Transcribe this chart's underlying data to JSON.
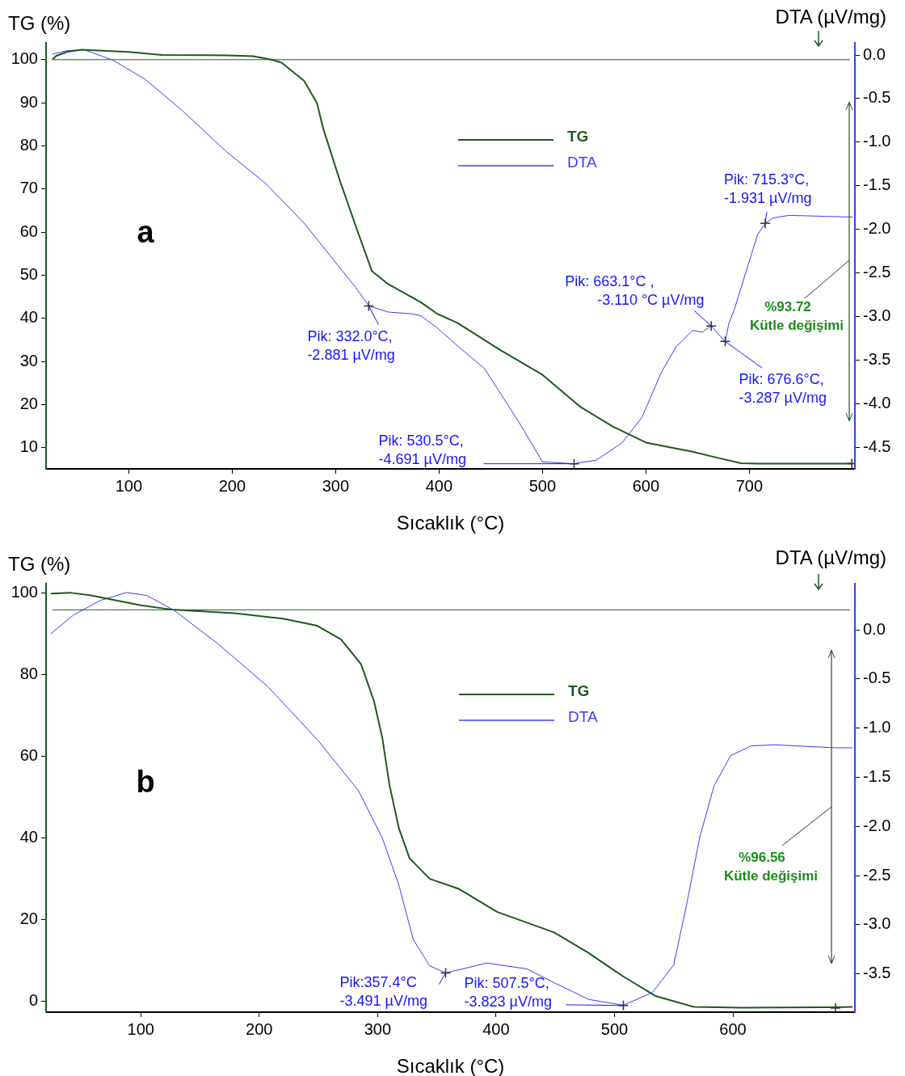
{
  "chart_data": [
    {
      "type": "line",
      "xlabel": "Sıcaklık (°C)",
      "ylabel": "TG (%)",
      "y2label": "DTA (µV/mg)",
      "xlim": [
        20,
        802
      ],
      "xticks": [
        100,
        200,
        300,
        400,
        500,
        600,
        700
      ],
      "ylim": [
        5.1,
        103.9
      ],
      "yticks": [
        10,
        20,
        30,
        40,
        50,
        60,
        70,
        80,
        90,
        100
      ],
      "y2lim": [
        -4.75,
        0.14
      ],
      "y2ticks": [
        {
          "value": 0,
          "label": "0.0"
        },
        -0.5,
        {
          "value": -1,
          "label": "-1.0"
        },
        -1.5,
        {
          "value": -2,
          "label": "-2.0"
        },
        -2.5,
        {
          "value": -3,
          "label": "-3.0"
        },
        -3.5,
        {
          "value": -4,
          "label": "-4.0"
        },
        -4.5
      ],
      "legend": "top",
      "ref_lines": [
        {
          "axis": "y",
          "value": 100,
          "color": "#1d5a1d"
        }
      ],
      "annotations": [
        "a",
        "%93.72\nKütle değişimi"
      ],
      "series": [
        {
          "name": "TG",
          "color": "#1d5a1d",
          "x": [
            26,
            30,
            40,
            54,
            100,
            132,
            194.5,
            220,
            238,
            247.7,
            269.5,
            282,
            288,
            304,
            320,
            335,
            351,
            382,
            398,
            418,
            459,
            500,
            537,
            568,
            600,
            645,
            667,
            692,
            708,
            800
          ],
          "values": [
            100,
            100.9,
            101.8,
            102.3,
            101.8,
            101.1,
            101,
            100.8,
            100,
            99.3,
            95.1,
            89.9,
            84,
            72,
            61,
            51,
            47.9,
            43.8,
            41.1,
            38.9,
            32.7,
            26.9,
            19.4,
            14.9,
            11.2,
            9.1,
            7.8,
            6.4,
            6.3,
            6.3
          ]
        },
        {
          "name": "DTA",
          "color": "#3b3bff",
          "axis": "y2",
          "x": [
            26,
            40,
            57,
            85,
            116,
            151,
            194.5,
            232,
            269.5,
            294.5,
            319.5,
            332,
            351,
            373,
            382,
            398,
            419,
            444,
            478,
            500,
            530.5,
            552,
            577,
            596,
            615,
            629,
            645,
            654.5,
            663.1,
            676.6,
            680,
            686,
            698.5,
            708,
            715.3,
            723,
            738.5,
            800
          ],
          "values": [
            0.01,
            0.05,
            0.06,
            -0.06,
            -0.28,
            -0.63,
            -1.11,
            -1.47,
            -1.93,
            -2.3,
            -2.67,
            -2.88,
            -2.95,
            -2.97,
            -2.99,
            -3.13,
            -3.35,
            -3.6,
            -4.23,
            -4.67,
            -4.69,
            -4.65,
            -4.45,
            -4.16,
            -3.64,
            -3.35,
            -3.16,
            -3.18,
            -3.11,
            -3.29,
            -3.09,
            -2.9,
            -2.42,
            -2.06,
            -1.93,
            -1.87,
            -1.84,
            -1.86
          ]
        },
        {
          "type": "scatter",
          "axis": "y2",
          "marker": "cross",
          "color": "#333333",
          "x": [
            332.0,
            530.5,
            663.1,
            676.6,
            715.3
          ],
          "values": [
            -2.881,
            -4.691,
            -3.11,
            -3.287,
            -1.931
          ],
          "value_labels": [
            "Pik: 332.0°C,\n-2.881 µV/mg",
            "Pik: 530.5°C,\n-4.691 µV/mg",
            "Pik: 663.1°C ,\n-3.110 °C µV/mg",
            "Pik: 676.6°C,\n-3.287 µV/mg",
            "Pik: 715.3°C,\n-1.931 µV/mg"
          ]
        },
        {
          "type": "scatter",
          "marker": "cross",
          "color": "#333333",
          "x": [
            799
          ],
          "values": [
            6.3
          ]
        }
      ]
    },
    {
      "type": "line",
      "xlabel": "Sıcaklık (°C)",
      "ylabel": "TG (%)",
      "y2label": "DTA (µV/mg)",
      "xlim": [
        20,
        703
      ],
      "xticks": [
        100,
        200,
        300,
        400,
        500,
        600
      ],
      "ylim": [
        -2.6,
        102.2
      ],
      "yticks": [
        0,
        20,
        40,
        60,
        80,
        100
      ],
      "y2lim": [
        -3.89,
        0.47
      ],
      "y2ticks": [
        {
          "value": 0,
          "label": "0.0"
        },
        -0.5,
        {
          "value": -1,
          "label": "-1.0"
        },
        -1.5,
        {
          "value": -2,
          "label": "-2.0"
        },
        -2.5,
        {
          "value": -3,
          "label": "-3.0"
        },
        -3.5
      ],
      "legend": "top",
      "ref_lines": [
        {
          "axis": "y",
          "value": 95.8,
          "color": "#1d5a1d"
        }
      ],
      "annotations": [
        "b",
        "%96.56\nKütle değişimi"
      ],
      "series": [
        {
          "name": "TG",
          "color": "#1d5a1d",
          "x": [
            24,
            40,
            57,
            100,
            128,
            179,
            221,
            249,
            269,
            286,
            297,
            304,
            310,
            318,
            327,
            344,
            369,
            401,
            449,
            478,
            507,
            535,
            567,
            607,
            687,
            701
          ],
          "values": [
            99.8,
            100,
            99.4,
            96.9,
            95.8,
            95,
            93.6,
            91.9,
            88.6,
            82.5,
            73.4,
            64.4,
            52.9,
            42.3,
            35,
            30,
            27.5,
            21.9,
            16.9,
            11.9,
            6.2,
            1.3,
            -1.3,
            -1.5,
            -1.4,
            -1.3
          ]
        },
        {
          "name": "DTA",
          "color": "#3b3bff",
          "axis": "y2",
          "x": [
            24,
            43,
            66,
            88,
            105,
            128,
            165,
            207.5,
            250,
            284,
            304,
            318,
            330,
            344,
            357.4,
            372,
            392,
            426,
            449,
            478,
            507.5,
            532,
            550,
            561,
            572,
            584,
            598,
            615.5,
            635.5,
            687,
            701
          ],
          "values": [
            -0.04,
            0.15,
            0.3,
            0.38,
            0.35,
            0.2,
            -0.14,
            -0.58,
            -1.13,
            -1.64,
            -2.12,
            -2.6,
            -3.15,
            -3.42,
            -3.49,
            -3.45,
            -3.39,
            -3.45,
            -3.59,
            -3.76,
            -3.82,
            -3.69,
            -3.41,
            -2.79,
            -2.11,
            -1.59,
            -1.28,
            -1.18,
            -1.17,
            -1.2,
            -1.2
          ]
        },
        {
          "type": "scatter",
          "axis": "y2",
          "marker": "cross",
          "color": "#333333",
          "x": [
            357.4,
            507.5
          ],
          "values": [
            -3.491,
            -3.823
          ],
          "value_labels": [
            "Pik:357.4°C\n-3.491 µV/mg",
            "Pik: 507.5°C,\n-3.823 µV/mg"
          ]
        },
        {
          "type": "scatter",
          "marker": "cross",
          "color": "#333333",
          "x": [
            686.6
          ],
          "values": [
            -1.6
          ]
        }
      ]
    }
  ]
}
